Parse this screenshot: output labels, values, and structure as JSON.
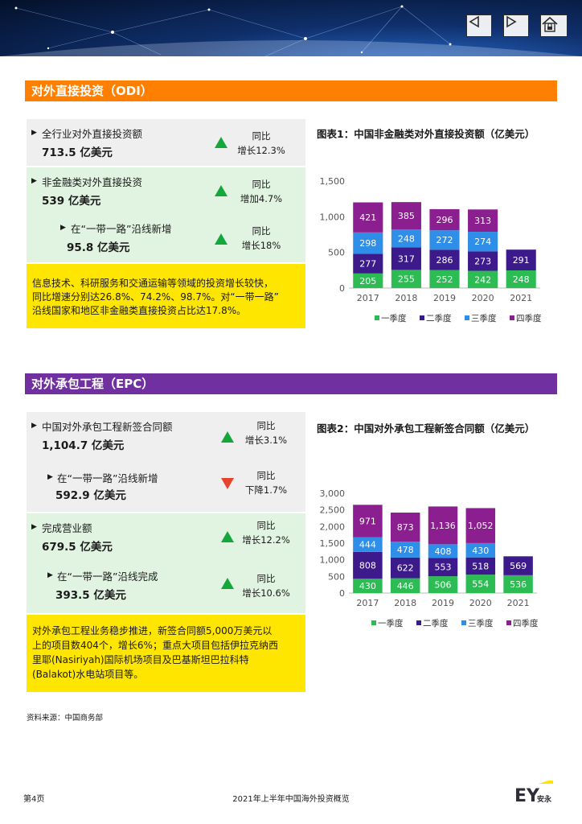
{
  "odi": {
    "title": "对外直接投资（ODI）",
    "items": [
      {
        "label": "全行业对外直接投资额",
        "value": "713.5 亿美元",
        "yoy_line1": "同比",
        "yoy_line2": "增长12.3%"
      },
      {
        "label": "非金融类对外直接投资",
        "value": "539 亿美元",
        "yoy_line1": "同比",
        "yoy_line2": "增加4.7%"
      },
      {
        "label": "在“一带一路”沿线新增",
        "value": "95.8 亿美元",
        "yoy_line1": "同比",
        "yoy_line2": "增长18%"
      }
    ],
    "summary": [
      "信息技术、科研服务和交通运输等领域的投资增长较快，",
      "同比增速分别达26.8%、74.2%、98.7%。对“一带一路”",
      "沿线国家和地区非金融类直接投资占比达17.8%。"
    ]
  },
  "epc": {
    "title": "对外承包工程（EPC）",
    "items": [
      {
        "label": "中国对外承包工程新签合同额",
        "value": "1,104.7 亿美元",
        "yoy_line1": "同比",
        "yoy_line2": "增长3.1%",
        "trend": "up"
      },
      {
        "label": "在“一带一路”沿线新增",
        "value": "592.9 亿美元",
        "yoy_line1": "同比",
        "yoy_line2": "下降1.7%",
        "trend": "down"
      },
      {
        "label": "完成营业额",
        "value": "679.5 亿美元",
        "yoy_line1": "同比",
        "yoy_line2": "增长12.2%",
        "trend": "up"
      },
      {
        "label": "在“一带一路”沿线完成",
        "value": "393.5 亿美元",
        "yoy_line1": "同比",
        "yoy_line2": "增长10.6%",
        "trend": "up"
      }
    ],
    "summary": [
      "对外承包工程业务稳步推进，新签合同额5,000万美元以",
      "上的项目数404个，增长6%；重点大项目包括伊拉克纳西",
      "里耶(Nasiriyah)国际机场项目及巴基斯坦巴拉科特",
      "(Balakot)水电站项目等。"
    ]
  },
  "chart_data": [
    {
      "type": "bar",
      "stacked": true,
      "title": "图表1：中国非金融类对外直接投资额（亿美元）",
      "categories": [
        "2017",
        "2018",
        "2019",
        "2020",
        "2021"
      ],
      "series": [
        {
          "name": "一季度",
          "color": "#2dbb54",
          "values": [
            205,
            255,
            252,
            242,
            248
          ]
        },
        {
          "name": "二季度",
          "color": "#3c1a8c",
          "values": [
            277,
            317,
            286,
            273,
            291
          ]
        },
        {
          "name": "三季度",
          "color": "#2f8fe8",
          "values": [
            298,
            248,
            272,
            274,
            null
          ]
        },
        {
          "name": "四季度",
          "color": "#8c1f8f",
          "values": [
            421,
            385,
            296,
            313,
            null
          ]
        }
      ],
      "yticks": [
        "0",
        "500",
        "1,000",
        "1,500"
      ],
      "ylim": [
        0,
        1500
      ],
      "legend": "bottom"
    },
    {
      "type": "bar",
      "stacked": true,
      "title": "图表2：中国对外承包工程新签合同额（亿美元）",
      "categories": [
        "2017",
        "2018",
        "2019",
        "2020",
        "2021"
      ],
      "series": [
        {
          "name": "一季度",
          "color": "#2dbb54",
          "values": [
            430,
            446,
            506,
            554,
            536
          ]
        },
        {
          "name": "二季度",
          "color": "#3c1a8c",
          "values": [
            808,
            622,
            553,
            518,
            569
          ]
        },
        {
          "name": "三季度",
          "color": "#2f8fe8",
          "values": [
            444,
            478,
            408,
            430,
            null
          ]
        },
        {
          "name": "四季度",
          "color": "#8c1f8f",
          "values": [
            971,
            873,
            1136,
            1052,
            null
          ]
        }
      ],
      "yticks": [
        "0",
        "500",
        "1,000",
        "1,500",
        "2,000",
        "2,500",
        "3,000"
      ],
      "ylim": [
        0,
        3000
      ],
      "legend": "bottom"
    }
  ],
  "source": "资料来源：中国商务部",
  "footer": {
    "page": "第4页",
    "title": "2021年上半年中国海外投资概览",
    "logo_text": "EY",
    "logo_cn": "安永"
  },
  "icons": [
    "back-arrow-icon",
    "forward-arrow-icon",
    "home-lock-icon"
  ]
}
